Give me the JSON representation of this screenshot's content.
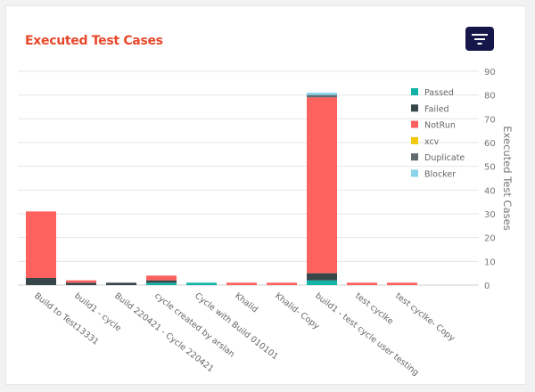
{
  "title": "Executed Test Cases",
  "filter_button": {
    "icon": "filter-icon"
  },
  "chart_data": {
    "type": "bar",
    "stacked": true,
    "title": "Executed Test Cases",
    "ylabel": "Executed Test Cases",
    "xlabel": "",
    "ylim": [
      0,
      90
    ],
    "yticks": [
      0,
      10,
      20,
      30,
      40,
      50,
      60,
      70,
      80,
      90
    ],
    "y_axis_position": "right",
    "grid": true,
    "legend_placement": "right",
    "categories": [
      "Build to Test13331",
      "build1 - cycle",
      "Build 220421 - Cycle 220421",
      "cycle created by arslan",
      "Cycle with Build 010101",
      "Khalid",
      "Khalid- Copy",
      "build1 - test cycle user testing",
      "test cyclke",
      "test cyclke- Copy"
    ],
    "series": [
      {
        "name": "Passed",
        "color": "#12b5a5",
        "values": [
          0,
          0,
          0,
          1,
          1,
          0,
          0,
          2,
          0,
          0
        ]
      },
      {
        "name": "Failed",
        "color": "#374649",
        "values": [
          3,
          1,
          1,
          1,
          0,
          0,
          0,
          3,
          0,
          0
        ]
      },
      {
        "name": "NotRun",
        "color": "#fd625e",
        "values": [
          28,
          1,
          0,
          2,
          0,
          1,
          1,
          74,
          1,
          1
        ]
      },
      {
        "name": "xcv",
        "color": "#f2c80f",
        "values": [
          0,
          0,
          0,
          0,
          0,
          0,
          0,
          0,
          0,
          0
        ]
      },
      {
        "name": "Duplicate",
        "color": "#5f6b6d",
        "values": [
          0,
          0,
          0,
          0,
          0,
          0,
          0,
          1,
          0,
          0
        ]
      },
      {
        "name": "Blocker",
        "color": "#8ad4eb",
        "values": [
          0,
          0,
          0,
          0,
          0,
          0,
          0,
          1,
          0,
          0
        ]
      }
    ]
  }
}
